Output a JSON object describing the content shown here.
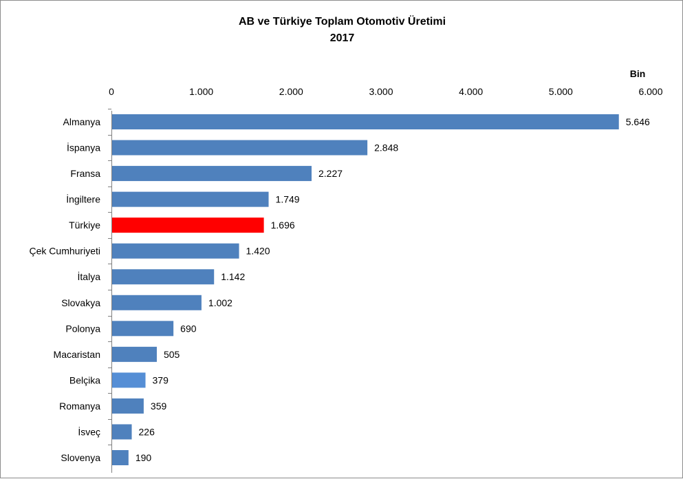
{
  "chart_data": {
    "type": "bar",
    "orientation": "horizontal",
    "title": "AB ve Türkiye Toplam Otomotiv Üretimi",
    "subtitle": "2017",
    "unit_label": "Bin",
    "axis_position": "top",
    "xlim": [
      0,
      6000
    ],
    "ticks": [
      0,
      1000,
      2000,
      3000,
      4000,
      5000,
      6000
    ],
    "tick_labels": [
      "0",
      "1.000",
      "2.000",
      "3.000",
      "4.000",
      "5.000",
      "6.000"
    ],
    "grid": false,
    "legend": "none",
    "categories": [
      "Almanya",
      "İspanya",
      "Fransa",
      "İngiltere",
      "Türkiye",
      "Çek Cumhuriyeti",
      "İtalya",
      "Slovakya",
      "Polonya",
      "Macaristan",
      "Belçika",
      "Romanya",
      "İsveç",
      "Slovenya"
    ],
    "values": [
      5646,
      2848,
      2227,
      1749,
      1696,
      1420,
      1142,
      1002,
      690,
      505,
      379,
      359,
      226,
      190
    ],
    "value_labels": [
      "5.646",
      "2.848",
      "2.227",
      "1.749",
      "1.696",
      "1.420",
      "1.142",
      "1.002",
      "690",
      "505",
      "379",
      "359",
      "226",
      "190"
    ],
    "bar_colors": [
      "#4f81bd",
      "#4f81bd",
      "#4f81bd",
      "#4f81bd",
      "#ff0000",
      "#4f81bd",
      "#4f81bd",
      "#4f81bd",
      "#4f81bd",
      "#4f81bd",
      "#558ed5",
      "#4f81bd",
      "#4f81bd",
      "#4f81bd"
    ]
  }
}
